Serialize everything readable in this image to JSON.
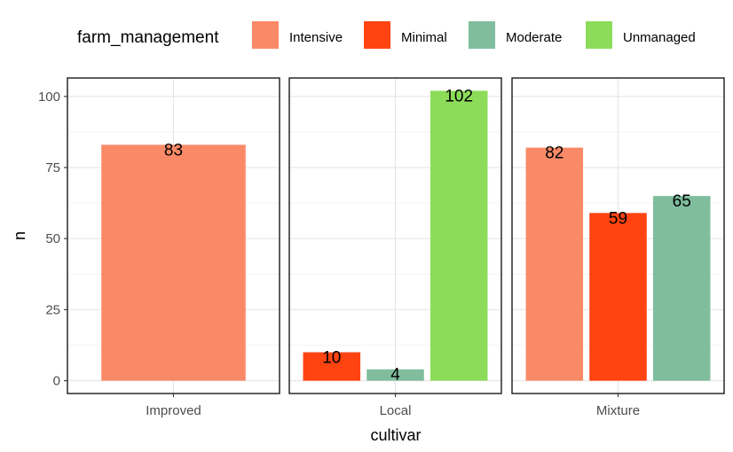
{
  "chart_data": {
    "type": "bar",
    "facets": [
      "Improved",
      "Local",
      "Mixture"
    ],
    "categories": [
      "Intensive",
      "Minimal",
      "Moderate",
      "Unmanaged"
    ],
    "series": [
      {
        "facet": "Improved",
        "values": [
          {
            "category": "Intensive",
            "value": 83
          }
        ]
      },
      {
        "facet": "Local",
        "values": [
          {
            "category": "Minimal",
            "value": 10
          },
          {
            "category": "Moderate",
            "value": 4
          },
          {
            "category": "Unmanaged",
            "value": 102
          }
        ]
      },
      {
        "facet": "Mixture",
        "values": [
          {
            "category": "Intensive",
            "value": 82
          },
          {
            "category": "Minimal",
            "value": 59
          },
          {
            "category": "Moderate",
            "value": 65
          }
        ]
      }
    ],
    "xlabel": "cultivar",
    "ylabel": "n",
    "ylim": [
      -4.5,
      106.5
    ],
    "yticks": [
      0,
      25,
      50,
      75,
      100
    ],
    "grid": true,
    "legend": {
      "title": "farm_management",
      "position": "top",
      "entries": [
        "Intensive",
        "Minimal",
        "Moderate",
        "Unmanaged"
      ]
    },
    "colors": {
      "Intensive": "#fa8a67",
      "Minimal": "#ff4412",
      "Moderate": "#7fbd9d",
      "Unmanaged": "#8cdc5a"
    }
  }
}
